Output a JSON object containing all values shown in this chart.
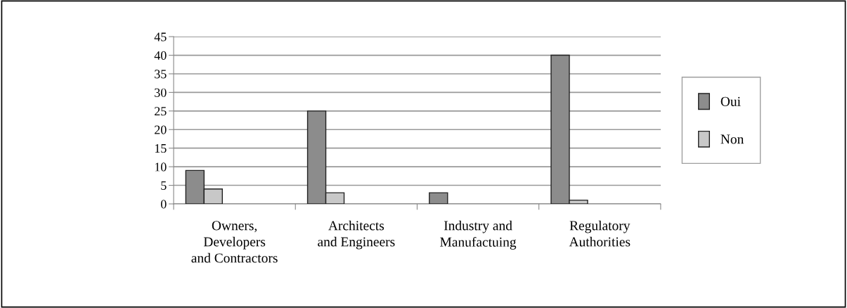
{
  "chart_data": {
    "type": "bar",
    "categories": [
      "Owners,\nDevelopers\nand Contractors",
      "Architects\nand Engineers",
      "Industry and\nManufactuing",
      "Regulatory\nAuthorities"
    ],
    "series": [
      {
        "name": "Oui",
        "color": "#8c8c8c",
        "values": [
          9,
          25,
          3,
          40
        ]
      },
      {
        "name": "Non",
        "color": "#c8c8c8",
        "values": [
          4,
          3,
          null,
          1
        ]
      }
    ],
    "ylim": [
      0,
      45
    ],
    "yticks": [
      0,
      5,
      10,
      15,
      20,
      25,
      30,
      35,
      40,
      45
    ],
    "grid": "y",
    "legend": "right"
  }
}
